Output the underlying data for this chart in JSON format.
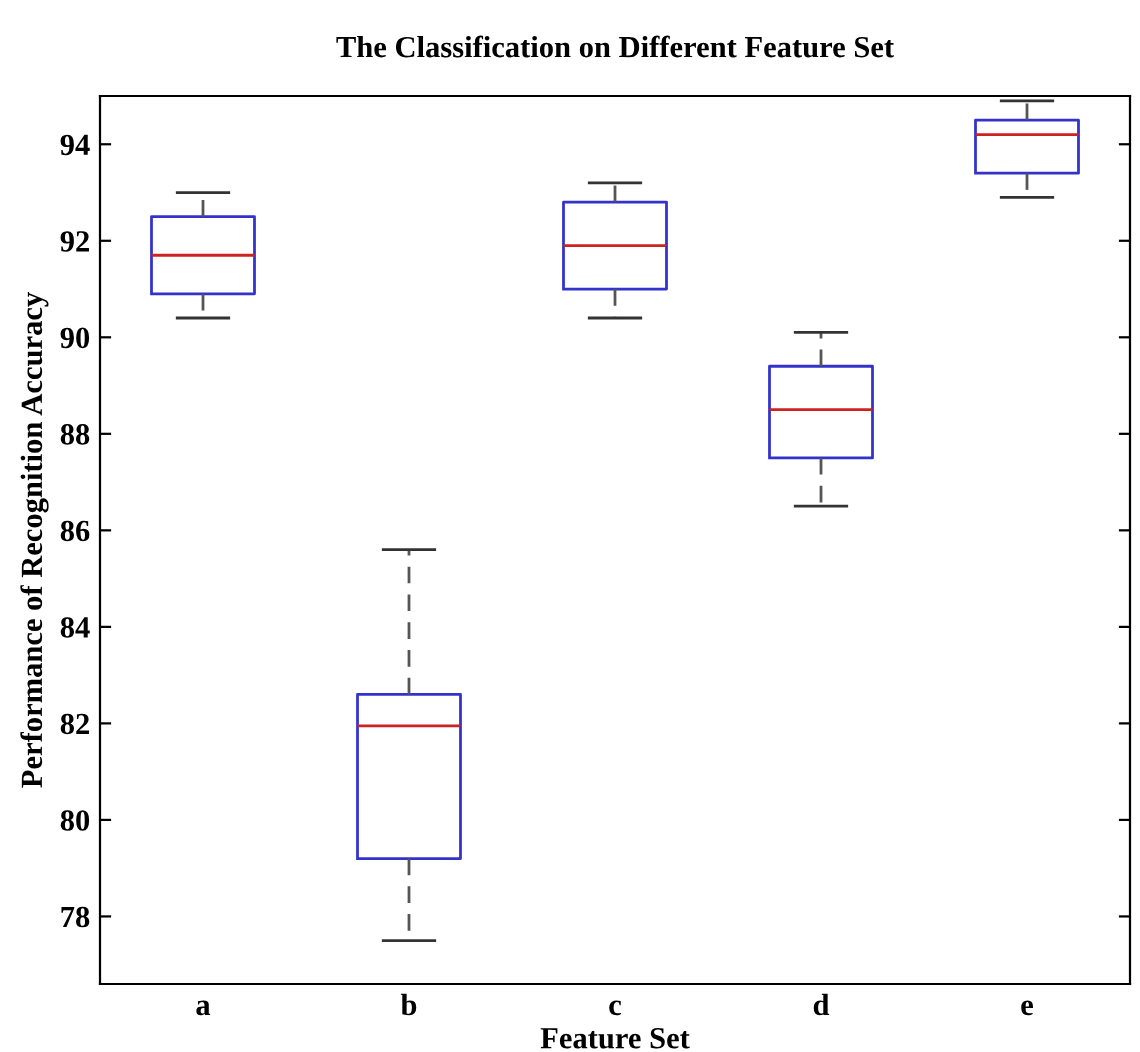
{
  "chart_data": {
    "type": "box",
    "title": "The Classification on Different Feature Set",
    "xlabel": "Feature Set",
    "ylabel": "Performance of Recognition Accuracy",
    "categories": [
      "a",
      "b",
      "c",
      "d",
      "e"
    ],
    "boxes": [
      {
        "low": 90.4,
        "q1": 90.9,
        "median": 91.7,
        "q3": 92.5,
        "high": 93.0
      },
      {
        "low": 77.5,
        "q1": 79.2,
        "median": 81.95,
        "q3": 82.6,
        "high": 85.6
      },
      {
        "low": 90.4,
        "q1": 91.0,
        "median": 91.9,
        "q3": 92.8,
        "high": 93.2
      },
      {
        "low": 86.5,
        "q1": 87.5,
        "median": 88.5,
        "q3": 89.4,
        "high": 90.1
      },
      {
        "low": 92.9,
        "q1": 93.4,
        "median": 94.2,
        "q3": 94.5,
        "high": 94.9
      }
    ],
    "color": "#3333cc",
    "ylim": [
      76.6,
      95.0
    ],
    "yticks": [
      78,
      80,
      82,
      84,
      86,
      88,
      90,
      92,
      94
    ],
    "grid": false
  }
}
